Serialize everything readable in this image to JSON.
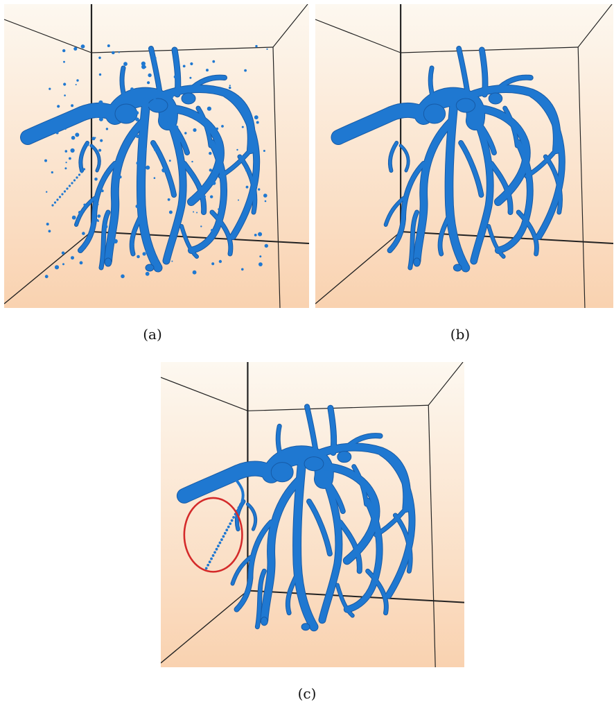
{
  "figure": {
    "panels": [
      {
        "id": "a",
        "label": "(a)",
        "artifact": "scattered-speckles"
      },
      {
        "id": "b",
        "label": "(b)",
        "artifact": "none"
      },
      {
        "id": "c",
        "label": "(c)",
        "artifact": "dotted-branch-circled"
      }
    ],
    "colors": {
      "vessel": "#1f78d1",
      "vessel_edge": "#165aa6",
      "background_top": "#fdf8f0",
      "background_bottom": "#f9d2b0",
      "box_line": "#222222",
      "highlight_circle": "#d42a2a"
    }
  }
}
